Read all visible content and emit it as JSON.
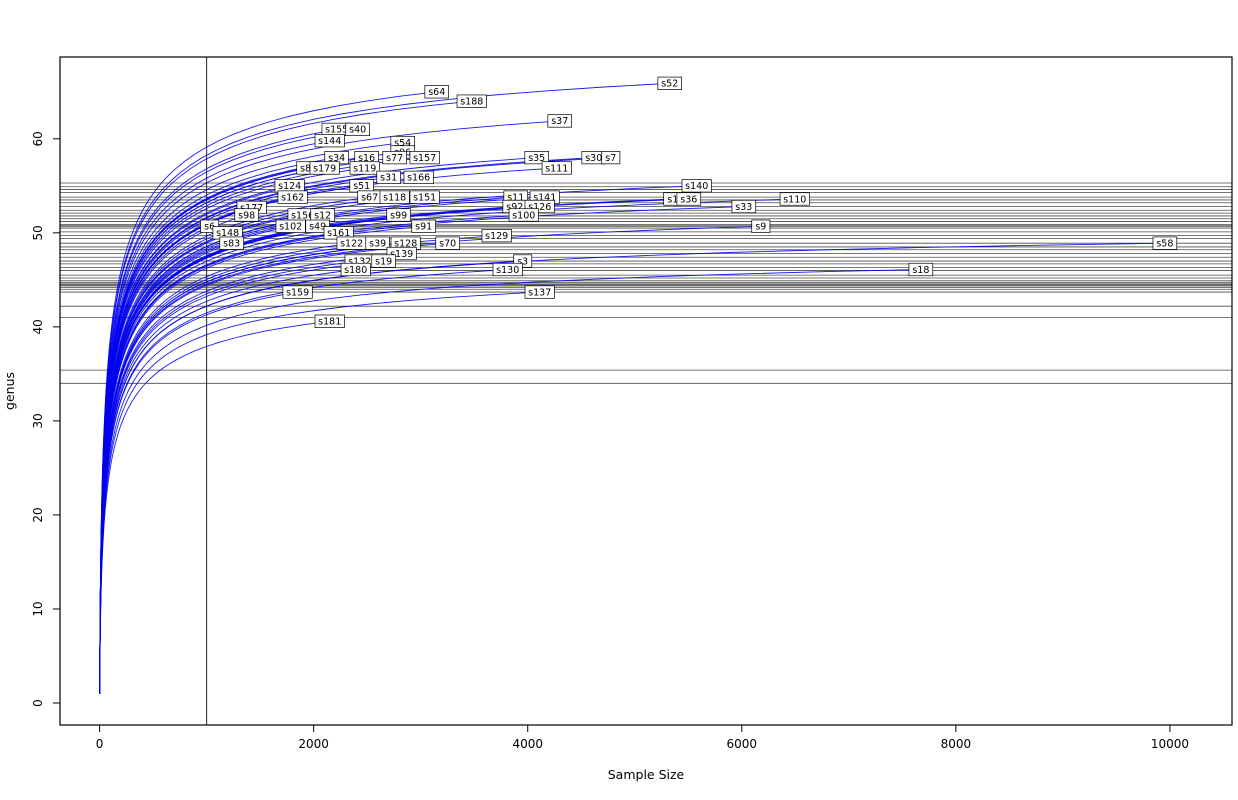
{
  "chart_data": {
    "type": "line",
    "subtype": "rarefaction-curves",
    "title": "",
    "xlabel": "Sample Size",
    "ylabel": "genus",
    "x_ticks": [
      0,
      2000,
      4000,
      6000,
      8000,
      10000
    ],
    "y_ticks": [
      0,
      10,
      20,
      30,
      40,
      50,
      60
    ],
    "xlim": [
      -370,
      10580
    ],
    "ylim": [
      -2.34,
      68.7
    ],
    "vline_x": 1000,
    "curve_color": "#0000EE",
    "grid": false,
    "legend": "none",
    "series": [
      {
        "label": "s64",
        "n": 3150,
        "s": 65.0
      },
      {
        "label": "s188",
        "n": 3477,
        "s": 64.0
      },
      {
        "label": "s52",
        "n": 5327,
        "s": 65.9
      },
      {
        "label": "s37",
        "n": 4299,
        "s": 61.9
      },
      {
        "label": "s155",
        "n": 2215,
        "s": 61.0
      },
      {
        "label": "s40",
        "n": 2411,
        "s": 61.0
      },
      {
        "label": "s144",
        "n": 2150,
        "s": 59.8
      },
      {
        "label": "s54",
        "n": 2832,
        "s": 59.6
      },
      {
        "label": "s96",
        "n": 2832,
        "s": 58.6
      },
      {
        "label": "s34",
        "n": 2215,
        "s": 58.0
      },
      {
        "label": "s16",
        "n": 2495,
        "s": 58.0
      },
      {
        "label": "s77",
        "n": 2757,
        "s": 58.0
      },
      {
        "label": "s157",
        "n": 3037,
        "s": 58.0
      },
      {
        "label": "s35",
        "n": 4084,
        "s": 58.0
      },
      {
        "label": "s30",
        "n": 4617,
        "s": 58.0
      },
      {
        "label": "s7",
        "n": 4776,
        "s": 58.0
      },
      {
        "label": "s85",
        "n": 1953,
        "s": 56.9
      },
      {
        "label": "s179",
        "n": 2103,
        "s": 56.9
      },
      {
        "label": "s119",
        "n": 2477,
        "s": 56.9
      },
      {
        "label": "s111",
        "n": 4271,
        "s": 56.9
      },
      {
        "label": "s31",
        "n": 2701,
        "s": 55.9
      },
      {
        "label": "s166",
        "n": 2981,
        "s": 55.9
      },
      {
        "label": "s124",
        "n": 1776,
        "s": 55.0
      },
      {
        "label": "s51",
        "n": 2449,
        "s": 55.0
      },
      {
        "label": "s140",
        "n": 5579,
        "s": 55.0
      },
      {
        "label": "s162",
        "n": 1804,
        "s": 53.8
      },
      {
        "label": "s67",
        "n": 2523,
        "s": 53.8
      },
      {
        "label": "s118",
        "n": 2757,
        "s": 53.8
      },
      {
        "label": "s151",
        "n": 3037,
        "s": 53.8
      },
      {
        "label": "s11",
        "n": 3888,
        "s": 53.8
      },
      {
        "label": "s141",
        "n": 4159,
        "s": 53.8
      },
      {
        "label": "s1",
        "n": 5355,
        "s": 53.6
      },
      {
        "label": "s36",
        "n": 5505,
        "s": 53.6
      },
      {
        "label": "s110",
        "n": 6495,
        "s": 53.6
      },
      {
        "label": "s177",
        "n": 1421,
        "s": 52.7
      },
      {
        "label": "s92",
        "n": 3879,
        "s": 52.8
      },
      {
        "label": "s126",
        "n": 4112,
        "s": 52.8
      },
      {
        "label": "s33",
        "n": 6019,
        "s": 52.8
      },
      {
        "label": "s98",
        "n": 1374,
        "s": 51.9
      },
      {
        "label": "s156",
        "n": 1897,
        "s": 51.9
      },
      {
        "label": "s12",
        "n": 2084,
        "s": 51.9
      },
      {
        "label": "s99",
        "n": 2794,
        "s": 51.9
      },
      {
        "label": "s100",
        "n": 3963,
        "s": 51.9
      },
      {
        "label": "s6",
        "n": 1028,
        "s": 50.7
      },
      {
        "label": "s102",
        "n": 1785,
        "s": 50.7
      },
      {
        "label": "s49",
        "n": 2037,
        "s": 50.7
      },
      {
        "label": "s91",
        "n": 3028,
        "s": 50.7
      },
      {
        "label": "s9",
        "n": 6178,
        "s": 50.7
      },
      {
        "label": "s148",
        "n": 1196,
        "s": 50.0
      },
      {
        "label": "s161",
        "n": 2234,
        "s": 50.0
      },
      {
        "label": "s129",
        "n": 3710,
        "s": 49.7
      },
      {
        "label": "s83",
        "n": 1234,
        "s": 48.9
      },
      {
        "label": "s122",
        "n": 2355,
        "s": 48.9
      },
      {
        "label": "s39",
        "n": 2598,
        "s": 48.9
      },
      {
        "label": "s128",
        "n": 2860,
        "s": 48.9
      },
      {
        "label": "s70",
        "n": 3252,
        "s": 48.9
      },
      {
        "label": "s58",
        "n": 9953,
        "s": 48.9
      },
      {
        "label": "s139",
        "n": 2822,
        "s": 47.8
      },
      {
        "label": "s132",
        "n": 2430,
        "s": 47.0
      },
      {
        "label": "s19",
        "n": 2654,
        "s": 47.0
      },
      {
        "label": "s3",
        "n": 3953,
        "s": 47.0
      },
      {
        "label": "s180",
        "n": 2393,
        "s": 46.1
      },
      {
        "label": "s130",
        "n": 3813,
        "s": 46.1
      },
      {
        "label": "s18",
        "n": 7673,
        "s": 46.1
      },
      {
        "label": "s159",
        "n": 1850,
        "s": 43.7
      },
      {
        "label": "s137",
        "n": 4112,
        "s": 43.7
      },
      {
        "label": "s181",
        "n": 2150,
        "s": 40.6
      }
    ],
    "rarefied_richness_lines": [
      55.3,
      54.9,
      54.6,
      54.3,
      53.8,
      53.5,
      53.2,
      52.8,
      52.4,
      52.1,
      51.8,
      51.5,
      51.2,
      50.9,
      50.75,
      50.65,
      50.5,
      50.1,
      49.7,
      49.4,
      48.9,
      48.5,
      48.2,
      47.8,
      47.4,
      47.0,
      46.7,
      46.3,
      46.0,
      45.5,
      45.2,
      44.9,
      44.7,
      44.55,
      44.45,
      44.35,
      44.2,
      44.0,
      43.7,
      42.2,
      41.0,
      35.4,
      34.0
    ]
  }
}
